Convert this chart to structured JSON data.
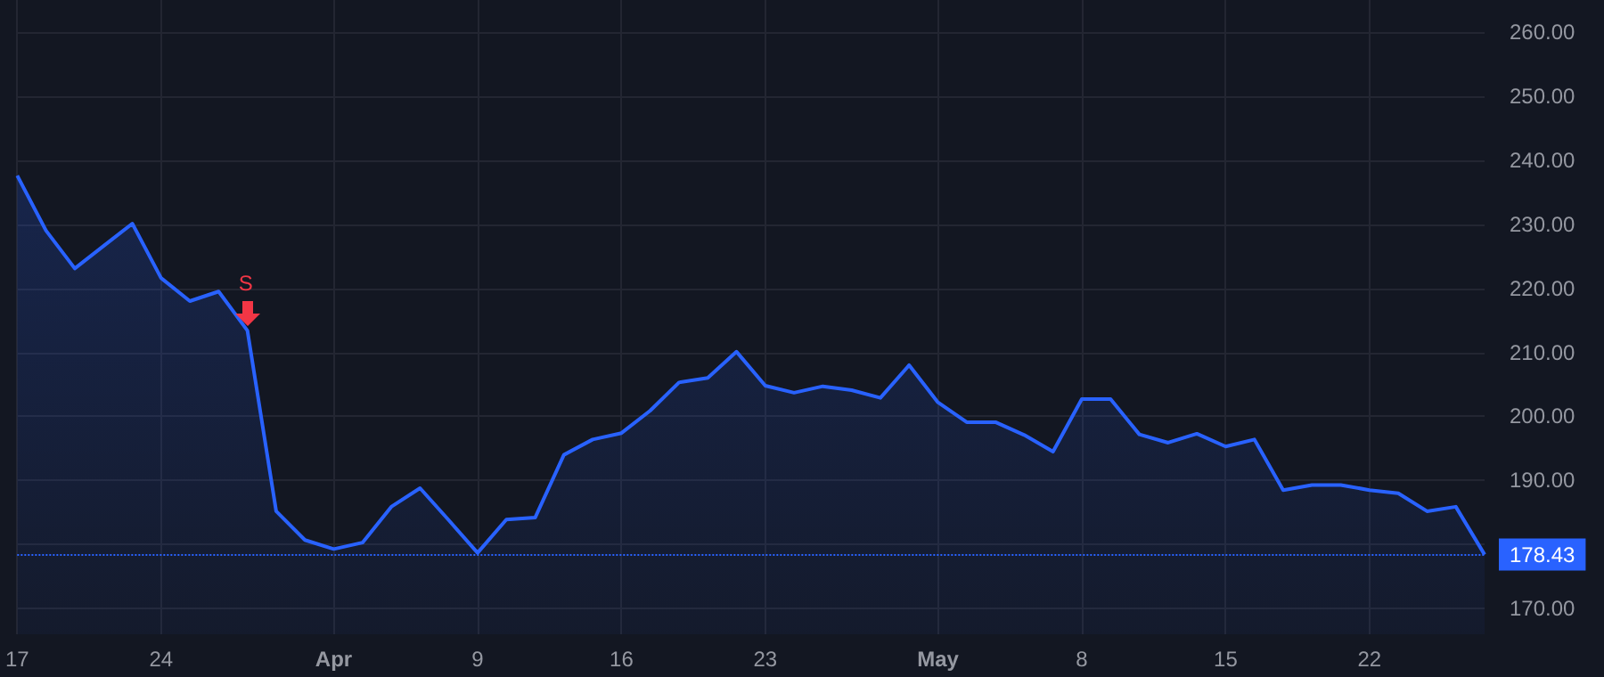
{
  "chart_data": {
    "type": "area",
    "categories": [
      "17",
      null,
      null,
      null,
      null,
      "24",
      null,
      null,
      null,
      null,
      null,
      "Apr",
      null,
      null,
      null,
      null,
      "9",
      null,
      null,
      null,
      null,
      "16",
      null,
      null,
      null,
      null,
      "23",
      null,
      null,
      null,
      null,
      null,
      "May",
      null,
      null,
      null,
      null,
      "8",
      null,
      null,
      null,
      null,
      "15",
      null,
      null,
      null,
      null,
      "22",
      null,
      null,
      null,
      null
    ],
    "series": [
      {
        "color": "#2962ff",
        "values": [
          237.6,
          229.0,
          223.1,
          226.6,
          230.1,
          221.6,
          218.0,
          219.5,
          213.4,
          185.2,
          180.7,
          179.3,
          180.3,
          185.9,
          188.8,
          183.8,
          178.7,
          183.9,
          184.2,
          194.0,
          196.4,
          197.4,
          200.9,
          205.3,
          206.0,
          210.1,
          204.8,
          203.7,
          204.7,
          204.1,
          202.9,
          208.0,
          202.2,
          199.1,
          199.1,
          197.1,
          194.5,
          202.7,
          202.7,
          197.2,
          195.9,
          197.3,
          195.3,
          196.4,
          188.5,
          189.3,
          189.3,
          188.5,
          188.0,
          185.2,
          185.9,
          178.43
        ]
      }
    ],
    "ylim": [
      166,
      265
    ],
    "yticks": [
      {
        "value": 170,
        "label": "170.00"
      },
      {
        "value": 180,
        "label": null
      },
      {
        "value": 190,
        "label": "190.00"
      },
      {
        "value": 200,
        "label": "200.00"
      },
      {
        "value": 210,
        "label": "210.00"
      },
      {
        "value": 220,
        "label": "220.00"
      },
      {
        "value": 230,
        "label": "230.00"
      },
      {
        "value": 240,
        "label": "240.00"
      },
      {
        "value": 250,
        "label": "250.00"
      },
      {
        "value": 260,
        "label": "260.00"
      }
    ],
    "ref_lines": [
      {
        "axis": "y",
        "value": 178.43,
        "label": "178.43",
        "color": "#2962ff",
        "line_style": "dotted"
      }
    ],
    "annotations": [
      {
        "text": "S",
        "y": 213.4
      }
    ],
    "grid": true,
    "marker": "none",
    "line_style": "solid"
  }
}
